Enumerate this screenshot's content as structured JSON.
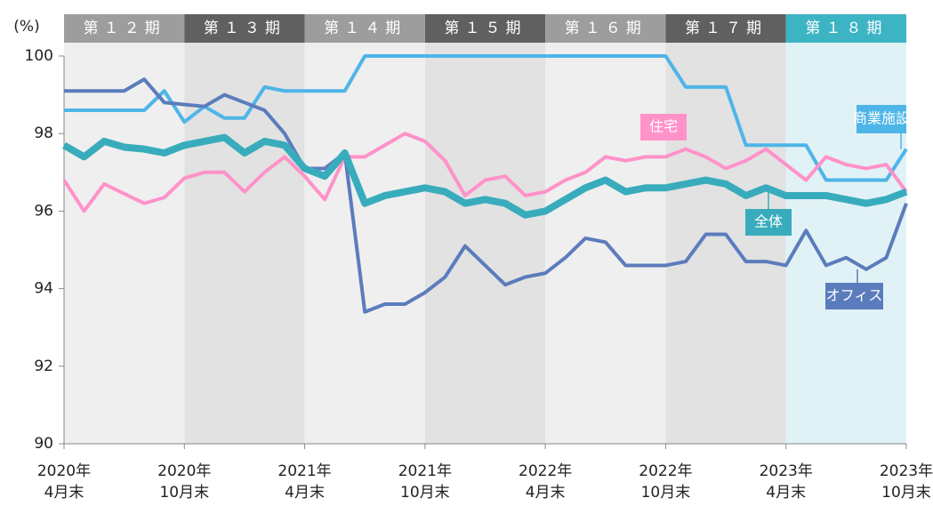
{
  "chart_data": {
    "type": "line",
    "y_label": "(%)",
    "periods": [
      "第１２期",
      "第１３期",
      "第１４期",
      "第１５期",
      "第１６期",
      "第１７期",
      "第１８期"
    ],
    "period_colors": [
      "#9d9d9d",
      "#606060",
      "#9d9d9d",
      "#606060",
      "#9d9d9d",
      "#606060",
      "#3db4c4"
    ],
    "categories": [
      "2020年\n4月末",
      null,
      null,
      null,
      null,
      null,
      "2020年\n10月末",
      null,
      null,
      null,
      null,
      null,
      "2021年\n4月末",
      null,
      null,
      null,
      null,
      null,
      "2021年\n10月末",
      null,
      null,
      null,
      null,
      null,
      "2022年\n4月末",
      null,
      null,
      null,
      null,
      null,
      "2022年\n10月末",
      null,
      null,
      null,
      null,
      null,
      "2023年\n4月末",
      null,
      null,
      null,
      null,
      null,
      "2023年\n10月末"
    ],
    "ylim": [
      90,
      100
    ],
    "yticks": [
      90,
      92,
      94,
      96,
      98,
      100
    ],
    "series": [
      {
        "name": "商業施設",
        "color": "#4eb5e8",
        "values": [
          98.6,
          98.6,
          98.6,
          98.6,
          98.6,
          99.1,
          98.3,
          98.7,
          98.4,
          98.4,
          99.2,
          99.1,
          99.1,
          99.1,
          99.1,
          100,
          100,
          100,
          100,
          100,
          100,
          100,
          100,
          100,
          100,
          100,
          100,
          100,
          100,
          100,
          100,
          99.2,
          99.2,
          99.2,
          97.7,
          97.7,
          97.7,
          97.7,
          96.8,
          96.8,
          96.8,
          96.8,
          97.6
        ]
      },
      {
        "name": "住宅",
        "color": "#ff92c9",
        "values": [
          96.8,
          96.0,
          96.7,
          96.45,
          96.2,
          96.35,
          96.85,
          97.0,
          97.0,
          96.5,
          97.0,
          97.4,
          96.9,
          96.3,
          97.4,
          97.4,
          97.7,
          98.0,
          97.8,
          97.3,
          96.4,
          96.8,
          96.9,
          96.4,
          96.5,
          96.8,
          97.0,
          97.4,
          97.3,
          97.4,
          97.4,
          97.6,
          97.4,
          97.1,
          97.3,
          97.6,
          97.2,
          96.8,
          97.4,
          97.2,
          97.1,
          97.2,
          96.5
        ]
      },
      {
        "name": "オフィス",
        "color": "#5b7cbc",
        "values": [
          99.1,
          99.1,
          99.1,
          99.1,
          99.4,
          98.8,
          98.75,
          98.7,
          99.0,
          98.8,
          98.6,
          98.0,
          97.1,
          97.1,
          97.5,
          93.4,
          93.6,
          93.6,
          93.9,
          94.3,
          95.1,
          94.6,
          94.1,
          94.3,
          94.4,
          94.8,
          95.3,
          95.2,
          94.6,
          94.6,
          94.6,
          94.7,
          95.4,
          95.4,
          94.7,
          94.7,
          94.6,
          95.5,
          94.6,
          94.8,
          94.5,
          94.8,
          96.2
        ]
      },
      {
        "name": "全体",
        "color": "#38acbc",
        "values": [
          97.7,
          97.4,
          97.8,
          97.65,
          97.6,
          97.5,
          97.7,
          97.8,
          97.9,
          97.5,
          97.8,
          97.7,
          97.1,
          96.9,
          97.5,
          96.2,
          96.4,
          96.5,
          96.6,
          96.5,
          96.2,
          96.3,
          96.2,
          95.9,
          96.0,
          96.3,
          96.6,
          96.8,
          96.5,
          96.6,
          96.6,
          96.7,
          96.8,
          96.7,
          96.4,
          96.6,
          96.4,
          96.4,
          96.4,
          96.3,
          96.2,
          96.3,
          96.5
        ]
      }
    ]
  }
}
